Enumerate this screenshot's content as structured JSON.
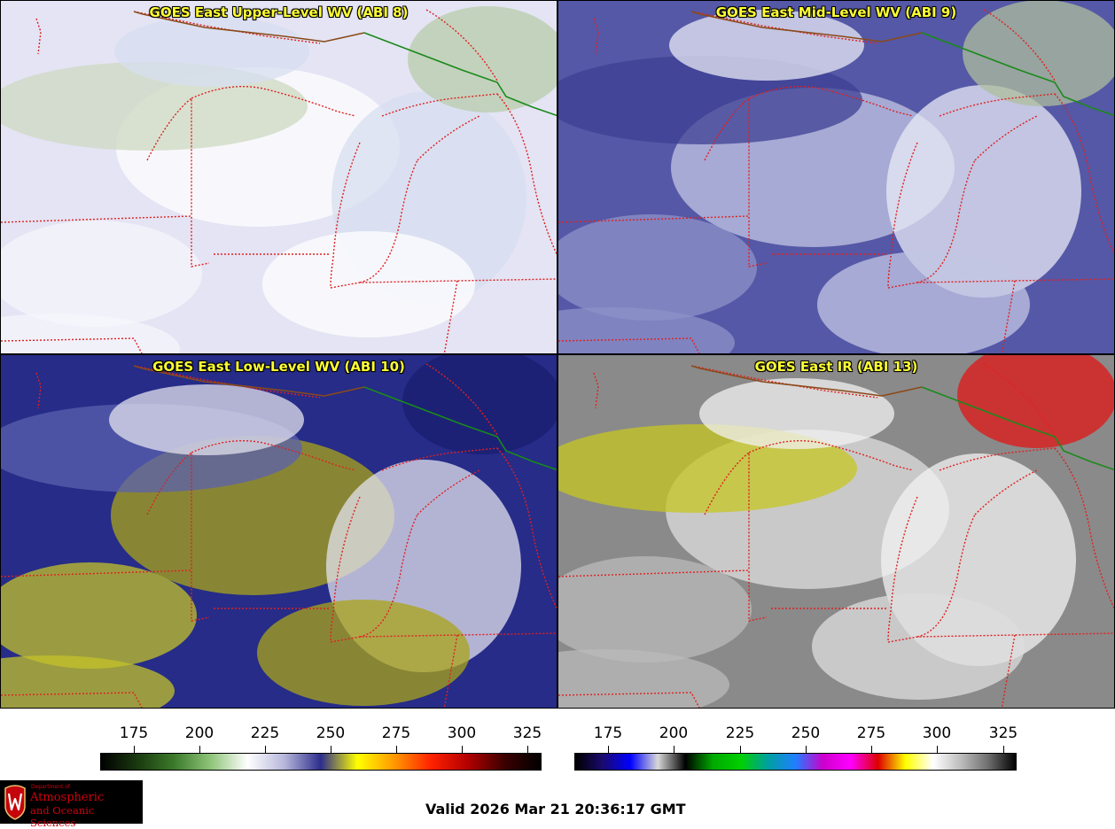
{
  "panels": [
    {
      "title": "GOES East Upper-Level WV (ABI 8)",
      "base": "#e4e4f4",
      "blobs": [
        "#f6f6fc",
        "#ffffff",
        "#d7dff0",
        "#cdd9c2",
        "#b8ccab"
      ]
    },
    {
      "title": "GOES East Mid-Level WV (ABI 9)",
      "base": "#5558a6",
      "blobs": [
        "#8d91c8",
        "#c2c5e3",
        "#e8e9f6",
        "#3d3f93",
        "#aebd9c"
      ]
    },
    {
      "title": "GOES East Low-Level WV (ABI 10)",
      "base": "#262c88",
      "blobs": [
        "#c3c22a",
        "#a9a419",
        "#e3e2ee",
        "#5b60ad",
        "#1a1d70"
      ]
    },
    {
      "title": "GOES East IR (ABI 13)",
      "base": "#8a8a8a",
      "blobs": [
        "#b9b9b9",
        "#dedede",
        "#f1f1f1",
        "#c5c520",
        "#e01515"
      ]
    }
  ],
  "colorbars": [
    {
      "ticks": [
        "175",
        "200",
        "225",
        "250",
        "275",
        "300",
        "325"
      ],
      "stops": [
        "#000000",
        "#1a3a10",
        "#3c7a2a",
        "#8fc57a",
        "#ffffff",
        "#b7b7dc",
        "#2d2d8c",
        "#ffff00",
        "#ff9900",
        "#ff2200",
        "#b40000",
        "#3c0000",
        "#000000"
      ]
    },
    {
      "ticks": [
        "175",
        "200",
        "225",
        "250",
        "275",
        "300",
        "325"
      ],
      "stops": [
        "#000000",
        "#1a0a6e",
        "#0000ff",
        "#d8d8d8",
        "#000000",
        "#00aa00",
        "#00d000",
        "#00a0a0",
        "#1f7fff",
        "#cc00cc",
        "#ff00ff",
        "#dd0000",
        "#ffff00",
        "#ffffff",
        "#bdbdbd",
        "#6e6e6e",
        "#000000"
      ]
    }
  ],
  "logo": {
    "line1": "Department of",
    "line2": "Atmospheric",
    "line3": "and Oceanic Sciences"
  },
  "valid": "Valid 2026 Mar 21 20:36:17 GMT"
}
